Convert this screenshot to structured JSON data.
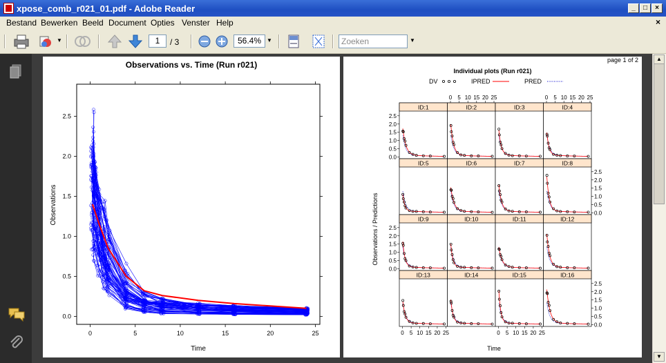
{
  "window": {
    "title": "xpose_comb_r021_01.pdf - Adobe Reader",
    "minimize": "_",
    "maximize": "□",
    "close": "×"
  },
  "menu": {
    "items": [
      "Bestand",
      "Bewerken",
      "Beeld",
      "Document",
      "Opties",
      "Venster",
      "Help"
    ],
    "close": "×"
  },
  "toolbar": {
    "page_current": "1",
    "page_total": "/ 3",
    "zoom": "56.4%",
    "search_placeholder": "Zoeken"
  },
  "icons": {
    "print": "print-icon",
    "attach": "attachments-icon",
    "pages": "pages-panel-icon",
    "comments": "comments-icon"
  },
  "page1": {
    "chart_data": {
      "type": "line",
      "title": "Observations vs. Time (Run r021)",
      "xlabel": "Time",
      "ylabel": "Observations",
      "xlim": [
        -1.5,
        25.5
      ],
      "ylim": [
        -0.1,
        2.9
      ],
      "xticks": [
        "0",
        "5",
        "10",
        "15",
        "20",
        "25"
      ],
      "yticks": [
        "0.0",
        "0.5",
        "1.0",
        "1.5",
        "2.0",
        "2.5"
      ],
      "times": [
        0.25,
        0.5,
        1,
        1.5,
        2,
        4,
        6,
        8,
        12,
        16,
        24
      ],
      "loess": {
        "x": [
          0.25,
          0.5,
          1,
          2,
          4,
          6,
          8,
          12,
          16,
          24
        ],
        "y": [
          1.4,
          1.32,
          1.15,
          0.85,
          0.5,
          0.32,
          0.26,
          0.2,
          0.16,
          0.1
        ]
      },
      "colors": {
        "obs": "#0000ff",
        "loess": "#ff0000"
      }
    }
  },
  "page2": {
    "page_label": "page 1 of 2",
    "chart_data": {
      "type": "line",
      "title": "Individual plots (Run r021)",
      "legend": [
        "DV",
        "IPRED",
        "PRED"
      ],
      "xlabel": "Time",
      "ylabel": "Observations / Predictions",
      "panels": [
        "ID:1",
        "ID:2",
        "ID:3",
        "ID:4",
        "ID:5",
        "ID:6",
        "ID:7",
        "ID:8",
        "ID:9",
        "ID:10",
        "ID:11",
        "ID:12",
        "ID:13",
        "ID:14",
        "ID:15",
        "ID:16"
      ],
      "xticks": [
        "0",
        "5",
        "10",
        "15",
        "20",
        "25"
      ],
      "yticks": [
        "0.0",
        "0.5",
        "1.0",
        "1.5",
        "2.0",
        "2.5"
      ],
      "xlim": [
        -1,
        25
      ],
      "ylim": [
        -0.1,
        2.7
      ],
      "series_peaks": [
        1.9,
        2.2,
        1.85,
        1.7,
        1.3,
        1.7,
        1.9,
        2.5,
        1.9,
        1.75,
        1.45,
        2.35,
        1.6,
        1.75,
        2.4,
        2.35
      ],
      "colors": {
        "ipred": "#ff0000",
        "pred": "#0000cc"
      }
    }
  }
}
